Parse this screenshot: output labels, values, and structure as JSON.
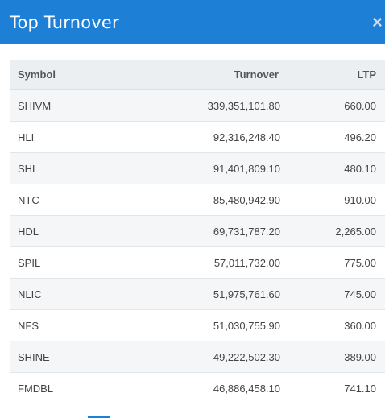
{
  "header": {
    "title": "Top Turnover",
    "close_label": "×"
  },
  "table": {
    "columns": {
      "symbol": "Symbol",
      "turnover": "Turnover",
      "ltp": "LTP"
    },
    "rows": [
      {
        "symbol": "SHIVM",
        "turnover": "339,351,101.80",
        "ltp": "660.00"
      },
      {
        "symbol": "HLI",
        "turnover": "92,316,248.40",
        "ltp": "496.20"
      },
      {
        "symbol": "SHL",
        "turnover": "91,401,809.10",
        "ltp": "480.10"
      },
      {
        "symbol": "NTC",
        "turnover": "85,480,942.90",
        "ltp": "910.00"
      },
      {
        "symbol": "HDL",
        "turnover": "69,731,787.20",
        "ltp": "2,265.00"
      },
      {
        "symbol": "SPIL",
        "turnover": "57,011,732.00",
        "ltp": "775.00"
      },
      {
        "symbol": "NLIC",
        "turnover": "51,975,761.60",
        "ltp": "745.00"
      },
      {
        "symbol": "NFS",
        "turnover": "51,030,755.90",
        "ltp": "360.00"
      },
      {
        "symbol": "SHINE",
        "turnover": "49,222,502.30",
        "ltp": "389.00"
      },
      {
        "symbol": "FMDBL",
        "turnover": "46,886,458.10",
        "ltp": "741.10"
      }
    ]
  },
  "colors": {
    "header_bg": "#1e7fd6",
    "table_header_bg": "#eceff2",
    "row_alt_bg": "#f5f6f8"
  }
}
